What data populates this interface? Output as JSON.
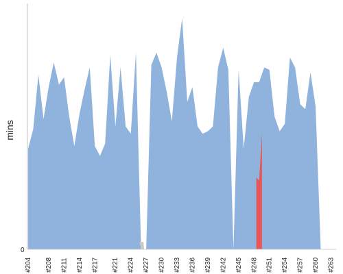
{
  "chart_data": {
    "type": "area",
    "ylabel": "mins",
    "y_tick_labels": [
      "0"
    ],
    "ylim": [
      0,
      100
    ],
    "grid": false,
    "colors": {
      "area": "#8fb3dc",
      "gap": "#c8c8c8",
      "highlight": "#e8555a",
      "axis": "#c0c0c0"
    },
    "x_tick_labels": [
      "#204",
      "#208",
      "#211",
      "#214",
      "#217",
      "#221",
      "#224",
      "#227",
      "#230",
      "#233",
      "#236",
      "#239",
      "#242",
      "#245",
      "#248",
      "#251",
      "#254",
      "#257",
      "#260",
      "#263"
    ],
    "x": [
      "#204",
      "#205",
      "#206",
      "#207",
      "#208",
      "#209",
      "#210",
      "#211",
      "#212",
      "#213",
      "#214",
      "#215",
      "#216",
      "#217",
      "#218",
      "#219",
      "#220",
      "#221",
      "#222",
      "#223",
      "#224",
      "#225",
      "#226",
      "#227",
      "#228",
      "#229",
      "#230",
      "#231",
      "#232",
      "#233",
      "#234",
      "#235",
      "#236",
      "#237",
      "#238",
      "#239",
      "#240",
      "#241",
      "#242",
      "#243",
      "#244",
      "#245",
      "#246",
      "#247",
      "#248",
      "#249",
      "#250",
      "#251",
      "#252",
      "#253",
      "#254",
      "#255",
      "#256",
      "#257",
      "#258",
      "#259",
      "#260",
      "#261",
      "#262",
      "#263",
      "#264"
    ],
    "values": [
      41,
      49,
      71,
      53,
      66,
      76,
      67,
      70,
      54,
      42,
      55,
      65,
      74,
      42,
      38,
      43,
      79,
      50,
      74,
      50,
      47,
      80,
      0,
      0,
      75,
      80,
      74,
      64,
      52,
      78,
      94,
      60,
      66,
      50,
      47,
      48,
      50,
      74,
      82,
      73,
      0,
      73,
      41,
      62,
      68,
      68,
      74,
      73,
      54,
      48,
      51,
      78,
      74,
      59,
      57,
      72,
      58,
      0,
      0,
      0,
      0
    ],
    "highlight": {
      "x": "#249",
      "values": [
        73,
        28,
        76
      ]
    },
    "gaps": [
      "#226",
      "#227"
    ]
  }
}
